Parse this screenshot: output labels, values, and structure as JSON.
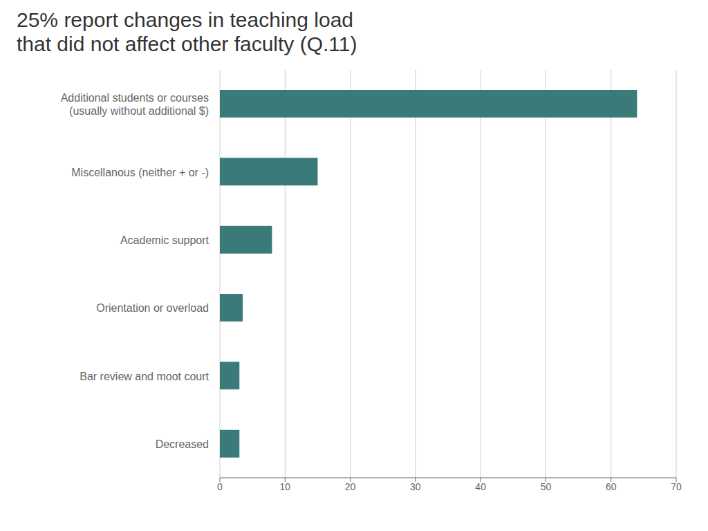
{
  "chart_data": {
    "type": "bar",
    "orientation": "horizontal",
    "title": "25% report changes in teaching load\nthat did not affect other faculty (Q.11)",
    "categories": [
      "Decreased",
      "Bar review and moot court",
      "Orientation or overload",
      "Academic support",
      "Miscellanous (neither + or -)",
      "Additional students or courses\n(usually without additional $)"
    ],
    "values": [
      3,
      3,
      3.5,
      8,
      15,
      64
    ],
    "color": "#3a7a78",
    "xlim": [
      0,
      70
    ],
    "xticks": [
      0,
      10,
      20,
      30,
      40,
      50,
      60,
      70
    ],
    "grid": true
  }
}
